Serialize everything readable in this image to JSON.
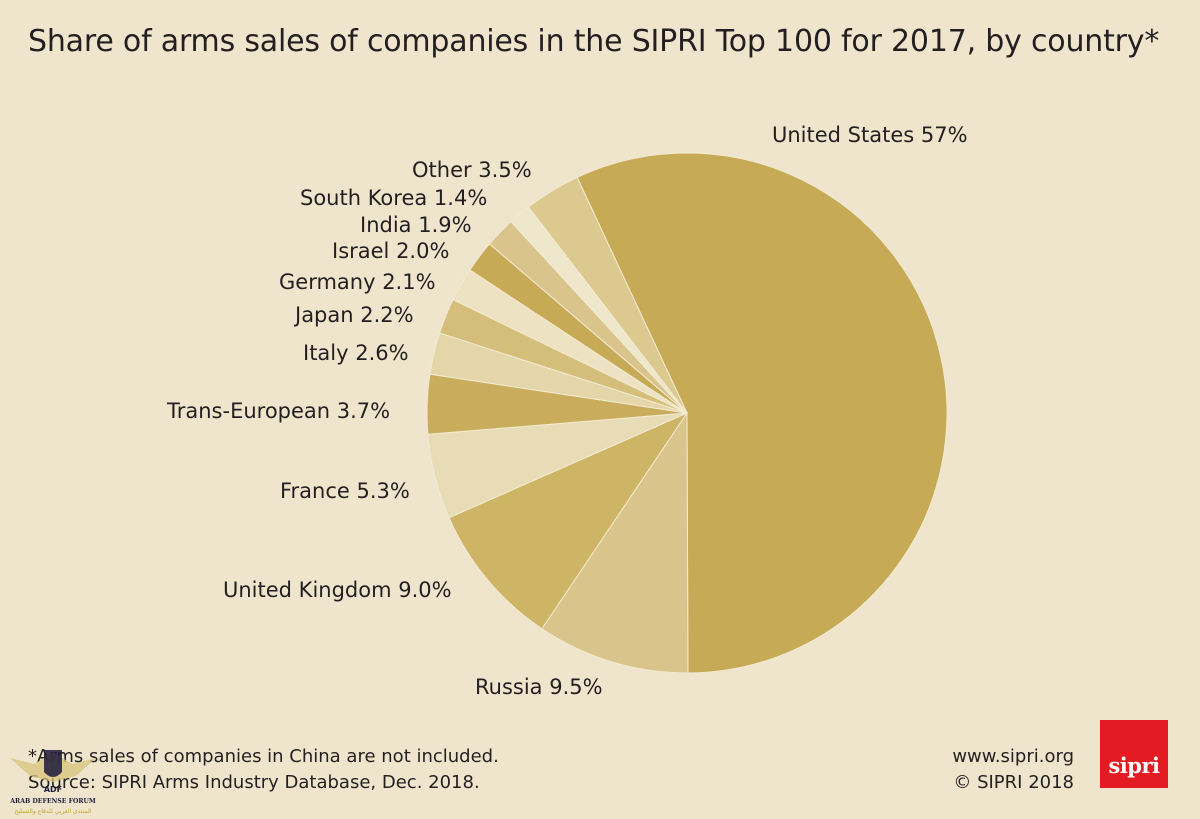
{
  "header": {
    "title": "Share of arms sales of companies in the SIPRI Top 100 for 2017, by country*"
  },
  "chart_data": {
    "type": "pie",
    "title": "Share of arms sales of companies in the SIPRI Top 100 for 2017, by country*",
    "unit": "%",
    "slices": [
      {
        "name": "United States",
        "value": 57,
        "label": "United States 57%",
        "color": "#c7aa56"
      },
      {
        "name": "Russia",
        "value": 9.5,
        "label": "Russia 9.5%",
        "color": "#d9c58b"
      },
      {
        "name": "United Kingdom",
        "value": 9.0,
        "label": "United Kingdom 9.0%",
        "color": "#ceb566"
      },
      {
        "name": "France",
        "value": 5.3,
        "label": "France 5.3%",
        "color": "#e8dcb7"
      },
      {
        "name": "Trans-European",
        "value": 3.7,
        "label": "Trans-European 3.7%",
        "color": "#c9ad5c"
      },
      {
        "name": "Italy",
        "value": 2.6,
        "label": "Italy 2.6%",
        "color": "#e4d6a9"
      },
      {
        "name": "Japan",
        "value": 2.2,
        "label": "Japan 2.2%",
        "color": "#d4be7a"
      },
      {
        "name": "Germany",
        "value": 2.1,
        "label": "Germany 2.1%",
        "color": "#ede3c3"
      },
      {
        "name": "Israel",
        "value": 2.0,
        "label": "Israel 2.0%",
        "color": "#c7aa56"
      },
      {
        "name": "India",
        "value": 1.9,
        "label": "India 1.9%",
        "color": "#d9c58b"
      },
      {
        "name": "South Korea",
        "value": 1.4,
        "label": "South Korea 1.4%",
        "color": "#efe7cb"
      },
      {
        "name": "Other",
        "value": 3.5,
        "label": "Other 3.5%",
        "color": "#dbc98f"
      }
    ]
  },
  "footer": {
    "note": "*Arms sales of companies in China are not included.",
    "source": "Source: SIPRI Arms Industry Database, Dec. 2018.",
    "website": "www.sipri.org",
    "copyright": "© SIPRI 2018",
    "logo_text": "sipri"
  },
  "watermark": {
    "line1": "ARAB DEFENSE FORUM",
    "line2": "المنتدى العربي للدفاع والتسليح",
    "badge": "ADF"
  }
}
